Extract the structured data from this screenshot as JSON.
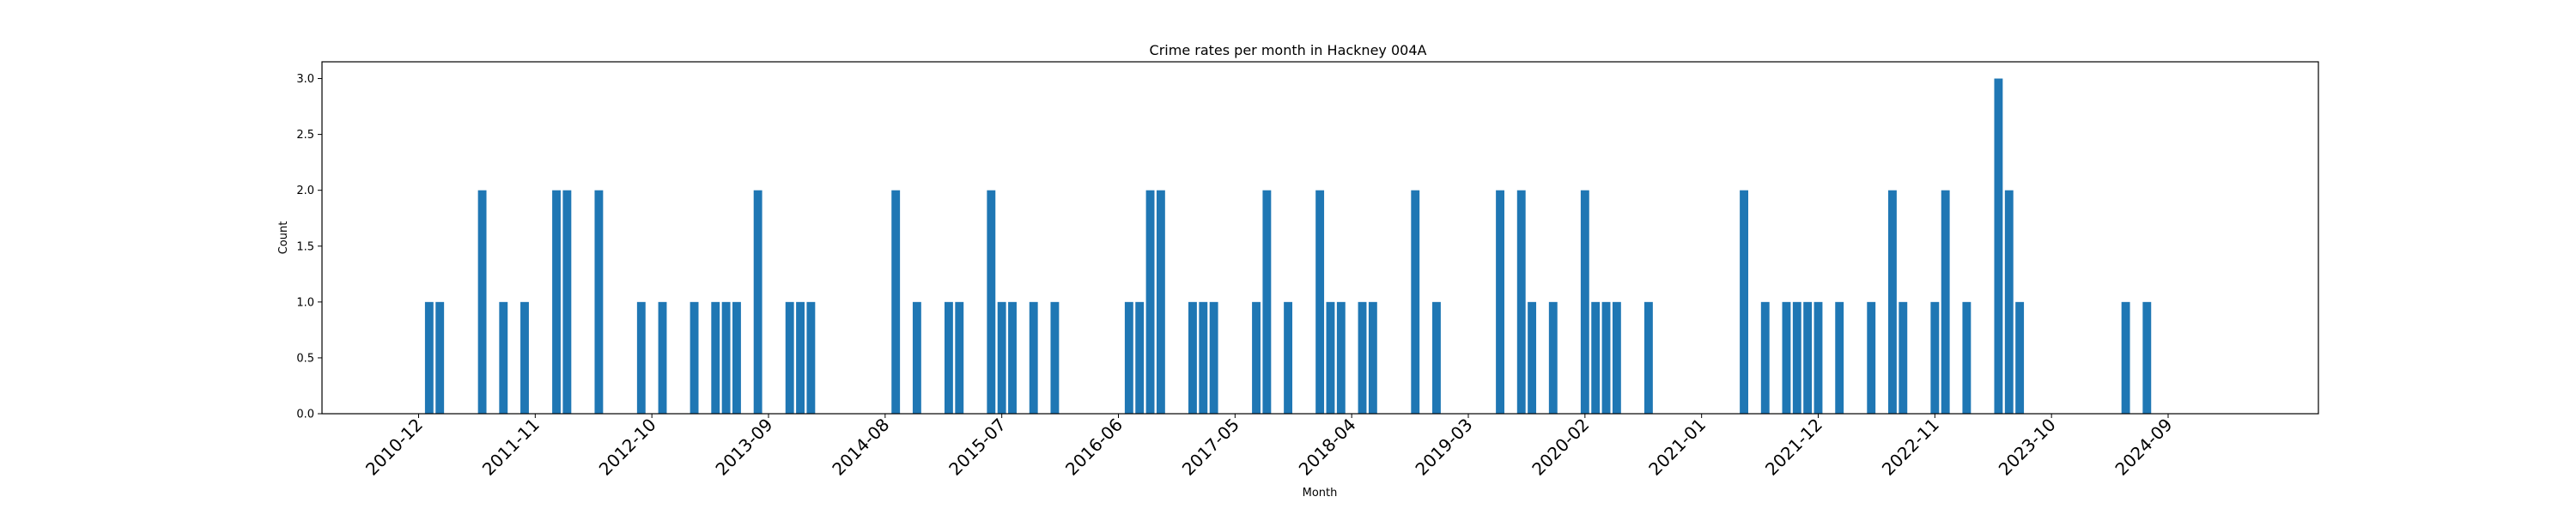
{
  "chart_data": {
    "type": "bar",
    "title": "Crime rates per month in Hackney 004A",
    "xlabel": "Month",
    "ylabel": "Count",
    "ylim": [
      0,
      3.15
    ],
    "yticks": [
      "0.0",
      "0.5",
      "1.0",
      "1.5",
      "2.0",
      "2.5",
      "3.0"
    ],
    "x_tick_labels": [
      "2010-12",
      "2011-11",
      "2012-10",
      "2013-09",
      "2014-08",
      "2015-07",
      "2016-06",
      "2017-05",
      "2018-04",
      "2019-03",
      "2020-02",
      "2021-01",
      "2021-12",
      "2022-11",
      "2023-10",
      "2024-09"
    ],
    "grid": false,
    "legend": "none",
    "bar_color": "#1f77b4",
    "categories": [
      "2011-01",
      "2011-02",
      "2011-06",
      "2011-08",
      "2011-10",
      "2012-01",
      "2012-02",
      "2012-05",
      "2012-09",
      "2012-11",
      "2013-02",
      "2013-04",
      "2013-05",
      "2013-06",
      "2013-08",
      "2013-11",
      "2013-12",
      "2014-01",
      "2014-09",
      "2014-11",
      "2015-02",
      "2015-03",
      "2015-06",
      "2015-07",
      "2015-08",
      "2015-10",
      "2015-12",
      "2016-07",
      "2016-08",
      "2016-09",
      "2016-10",
      "2017-01",
      "2017-02",
      "2017-03",
      "2017-07",
      "2017-08",
      "2017-10",
      "2018-01",
      "2018-02",
      "2018-03",
      "2018-05",
      "2018-06",
      "2018-10",
      "2018-12",
      "2019-06",
      "2019-08",
      "2019-09",
      "2019-11",
      "2020-02",
      "2020-03",
      "2020-04",
      "2020-05",
      "2020-08",
      "2021-05",
      "2021-07",
      "2021-09",
      "2021-10",
      "2021-11",
      "2021-12",
      "2022-02",
      "2022-05",
      "2022-07",
      "2022-08",
      "2022-11",
      "2022-12",
      "2023-02",
      "2023-05",
      "2023-06",
      "2023-07",
      "2024-05",
      "2024-07"
    ],
    "values": [
      1,
      1,
      2,
      1,
      1,
      2,
      2,
      2,
      1,
      1,
      1,
      1,
      1,
      1,
      2,
      1,
      1,
      1,
      2,
      1,
      1,
      1,
      2,
      1,
      1,
      1,
      1,
      1,
      1,
      2,
      2,
      1,
      1,
      1,
      1,
      2,
      1,
      2,
      1,
      1,
      1,
      1,
      2,
      1,
      2,
      2,
      1,
      1,
      2,
      1,
      1,
      1,
      1,
      2,
      1,
      1,
      1,
      1,
      1,
      1,
      1,
      2,
      1,
      1,
      2,
      1,
      3,
      2,
      1,
      1,
      1
    ]
  }
}
